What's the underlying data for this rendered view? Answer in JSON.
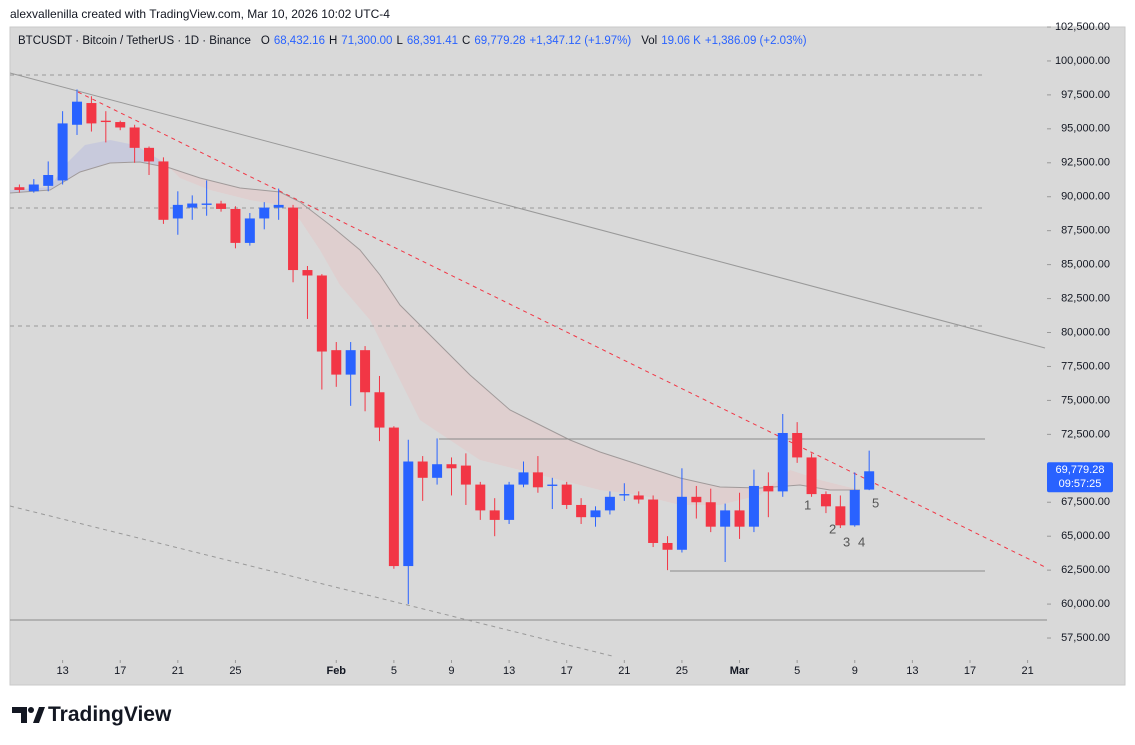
{
  "attribution": "alexvallenilla created with TradingView.com, Mar 10, 2026 10:02 UTC-4",
  "footer": "TradingView",
  "chart_data": {
    "type": "candlestick",
    "title": "BTCUSDT · Bitcoin / TetherUS · 1D · Binance",
    "ohlc_legend": [
      {
        "label": "O",
        "value": "68,432.16"
      },
      {
        "label": "H",
        "value": "71,300.00"
      },
      {
        "label": "L",
        "value": "68,391.41"
      },
      {
        "label": "C",
        "value": "69,779.28"
      }
    ],
    "change": "+1,347.12 (+1.97%)",
    "volume": {
      "label": "Vol",
      "value": "19.06 K",
      "change": "+1,386.09 (+2.03%)"
    },
    "last_price": {
      "price": "69,779.28",
      "countdown": "09:57:25"
    },
    "annotations": [
      "1",
      "2",
      "3",
      "4",
      "5"
    ],
    "up_color": "#2962ff",
    "down_color": "#f23645",
    "x": [
      "2026-01-10",
      "2026-01-11",
      "2026-01-12",
      "2026-01-13",
      "2026-01-14",
      "2026-01-15",
      "2026-01-16",
      "2026-01-17",
      "2026-01-18",
      "2026-01-19",
      "2026-01-20",
      "2026-01-21",
      "2026-01-22",
      "2026-01-23",
      "2026-01-24",
      "2026-01-25",
      "2026-01-26",
      "2026-01-27",
      "2026-01-28",
      "2026-01-29",
      "2026-01-30",
      "2026-01-31",
      "2026-02-01",
      "2026-02-02",
      "2026-02-03",
      "2026-02-04",
      "2026-02-05",
      "2026-02-06",
      "2026-02-07",
      "2026-02-08",
      "2026-02-09",
      "2026-02-10",
      "2026-02-11",
      "2026-02-12",
      "2026-02-13",
      "2026-02-14",
      "2026-02-15",
      "2026-02-16",
      "2026-02-17",
      "2026-02-18",
      "2026-02-19",
      "2026-02-20",
      "2026-02-21",
      "2026-02-22",
      "2026-02-23",
      "2026-02-24",
      "2026-02-25",
      "2026-02-26",
      "2026-02-27",
      "2026-02-28",
      "2026-03-01",
      "2026-03-02",
      "2026-03-03",
      "2026-03-04",
      "2026-03-05",
      "2026-03-06",
      "2026-03-07",
      "2026-03-08",
      "2026-03-09",
      "2026-03-10"
    ],
    "open": [
      90700,
      90400,
      90800,
      91200,
      95300,
      96900,
      95600,
      95500,
      95100,
      93600,
      92600,
      88400,
      89200,
      89400,
      89500,
      89100,
      86600,
      88400,
      89200,
      89200,
      84600,
      84200,
      78700,
      76900,
      78700,
      75600,
      73000,
      62800,
      70500,
      69300,
      70300,
      70200,
      68800,
      66900,
      66200,
      68800,
      69700,
      68700,
      68800,
      67300,
      66400,
      66900,
      68000,
      68000,
      67700,
      64500,
      64000,
      67900,
      67500,
      65700,
      66900,
      65700,
      68700,
      68300,
      72600,
      70800,
      68100,
      67200,
      65800,
      68432.16
    ],
    "high": [
      90900,
      91300,
      92600,
      96300,
      97900,
      97400,
      96300,
      95600,
      95300,
      93700,
      92900,
      90400,
      90100,
      91200,
      89700,
      89300,
      88800,
      89600,
      90600,
      89400,
      84900,
      84300,
      79300,
      79300,
      79000,
      76800,
      73100,
      72100,
      70900,
      72200,
      70800,
      71100,
      69000,
      67800,
      69000,
      70500,
      70900,
      69300,
      69000,
      67800,
      67200,
      68300,
      68900,
      68300,
      68000,
      65000,
      70000,
      68700,
      68500,
      67400,
      68200,
      69900,
      69700,
      74000,
      73400,
      71100,
      68300,
      68000,
      69700,
      71300
    ],
    "low": [
      90300,
      90300,
      90400,
      90900,
      94550,
      94800,
      94000,
      94900,
      92500,
      91600,
      88000,
      87200,
      88300,
      88600,
      88900,
      86200,
      86400,
      87600,
      88300,
      83700,
      81000,
      75800,
      76000,
      74600,
      74200,
      72000,
      62600,
      60000,
      67600,
      68800,
      68000,
      67300,
      66200,
      65000,
      65900,
      68600,
      68200,
      67000,
      67000,
      65900,
      65700,
      66600,
      67600,
      67400,
      64200,
      62500,
      63800,
      66300,
      65300,
      63100,
      64800,
      65300,
      66400,
      67900,
      70400,
      67900,
      66700,
      65600,
      65700,
      68391.41
    ],
    "close": [
      90500,
      90900,
      91600,
      95400,
      97000,
      95400,
      95500,
      95100,
      93600,
      92600,
      88300,
      89400,
      89500,
      89500,
      89100,
      86600,
      88400,
      89200,
      89400,
      84600,
      84200,
      78600,
      76900,
      78700,
      75600,
      73000,
      62800,
      70500,
      69300,
      70300,
      70000,
      68800,
      66900,
      66200,
      68800,
      69700,
      68600,
      68800,
      67300,
      66400,
      66900,
      67900,
      68100,
      67700,
      64500,
      64000,
      67900,
      67500,
      65700,
      66900,
      65700,
      68700,
      68300,
      72600,
      70800,
      68100,
      67200,
      65800,
      68400,
      69779.28
    ],
    "xlim": [
      "2026-01-09",
      "2026-03-22"
    ],
    "xticks": [
      {
        "value": "2026-01-13",
        "label": "13"
      },
      {
        "value": "2026-01-17",
        "label": "17"
      },
      {
        "value": "2026-01-21",
        "label": "21"
      },
      {
        "value": "2026-01-25",
        "label": "25"
      },
      {
        "value": "2026-02-01",
        "label": "Feb"
      },
      {
        "value": "2026-02-05",
        "label": "5"
      },
      {
        "value": "2026-02-09",
        "label": "9"
      },
      {
        "value": "2026-02-13",
        "label": "13"
      },
      {
        "value": "2026-02-17",
        "label": "17"
      },
      {
        "value": "2026-02-21",
        "label": "21"
      },
      {
        "value": "2026-02-25",
        "label": "25"
      },
      {
        "value": "2026-03-01",
        "label": "Mar"
      },
      {
        "value": "2026-03-05",
        "label": "5"
      },
      {
        "value": "2026-03-09",
        "label": "9"
      },
      {
        "value": "2026-03-13",
        "label": "13"
      },
      {
        "value": "2026-03-17",
        "label": "17"
      },
      {
        "value": "2026-03-21",
        "label": "21"
      }
    ],
    "ylim": [
      56250,
      102500
    ],
    "yticks": [
      {
        "value": 57500,
        "label": "57,500.00"
      },
      {
        "value": 60000,
        "label": "60,000.00"
      },
      {
        "value": 62500,
        "label": "62,500.00"
      },
      {
        "value": 65000,
        "label": "65,000.00"
      },
      {
        "value": 67500,
        "label": "67,500.00"
      },
      {
        "value": 70000,
        "label": "70,000.00"
      },
      {
        "value": 72500,
        "label": "72,500.00"
      },
      {
        "value": 75000,
        "label": "75,000.00"
      },
      {
        "value": 77500,
        "label": "77,500.00"
      },
      {
        "value": 80000,
        "label": "80,000.00"
      },
      {
        "value": 82500,
        "label": "82,500.00"
      },
      {
        "value": 85000,
        "label": "85,000.00"
      },
      {
        "value": 87500,
        "label": "87,500.00"
      },
      {
        "value": 90000,
        "label": "90,000.00"
      },
      {
        "value": 92500,
        "label": "92,500.00"
      },
      {
        "value": 95000,
        "label": "95,000.00"
      },
      {
        "value": 97500,
        "label": "97,500.00"
      },
      {
        "value": 100000,
        "label": "100,000.00"
      },
      {
        "value": 102500,
        "label": "102,500.00"
      }
    ]
  }
}
